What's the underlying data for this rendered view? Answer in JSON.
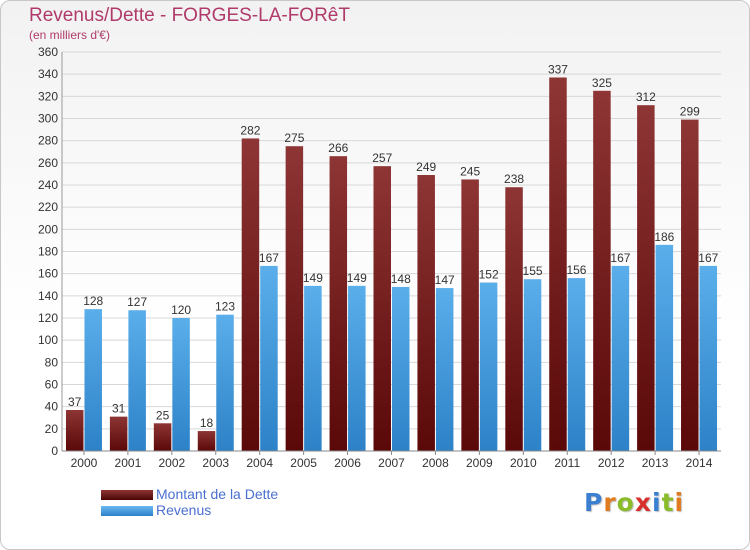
{
  "colors": {
    "dette": "#8b2020",
    "revenus": "#3d9be0",
    "title": "#b03a6a",
    "legend_text": "#4a6fd0"
  },
  "header": {
    "title": "Revenus/Dette - FORGES-LA-FORêT",
    "subtitle": "(en milliers d'€)"
  },
  "legend": {
    "items": [
      {
        "label": "Montant de la Dette"
      },
      {
        "label": "Revenus"
      }
    ]
  },
  "logo": {
    "text": "Proxiti"
  },
  "chart_data": {
    "type": "bar",
    "title": "Revenus/Dette - FORGES-LA-FORêT",
    "subtitle": "(en milliers d'€)",
    "xlabel": "",
    "ylabel": "",
    "categories": [
      "2000",
      "2001",
      "2002",
      "2003",
      "2004",
      "2005",
      "2006",
      "2007",
      "2008",
      "2009",
      "2010",
      "2011",
      "2012",
      "2013",
      "2014"
    ],
    "series": [
      {
        "name": "Montant de la Dette",
        "values": [
          37,
          31,
          25,
          18,
          282,
          275,
          266,
          257,
          249,
          245,
          238,
          337,
          325,
          312,
          299
        ]
      },
      {
        "name": "Revenus",
        "values": [
          128,
          127,
          120,
          123,
          167,
          149,
          149,
          148,
          147,
          152,
          155,
          156,
          167,
          186,
          167
        ]
      }
    ],
    "ylim": [
      0,
      360
    ],
    "yticks": [
      0,
      20,
      40,
      60,
      80,
      100,
      120,
      140,
      160,
      180,
      200,
      220,
      240,
      260,
      280,
      300,
      320,
      340,
      360
    ],
    "grid": true,
    "legend_position": "bottom-left"
  }
}
